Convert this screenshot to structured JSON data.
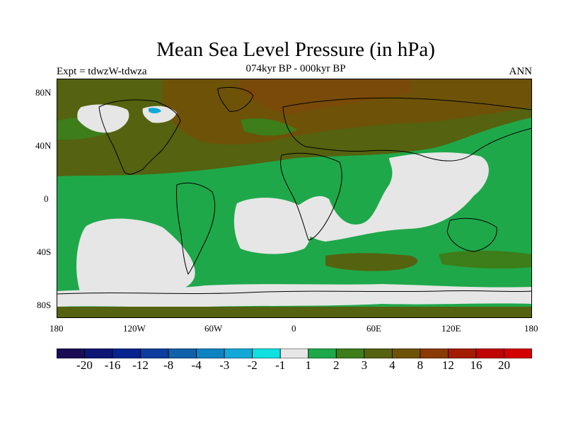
{
  "header": {
    "title": "Mean Sea Level Pressure (in hPa)",
    "experiment": "Expt = tdwzW-tdwza",
    "period": "074kyr BP - 000kyr BP",
    "season": "ANN"
  },
  "map": {
    "projection": "cylindrical equidistant",
    "lat_labels": [
      "80N",
      "40N",
      "0",
      "40S",
      "80S"
    ],
    "lon_labels": [
      "180",
      "120W",
      "60W",
      "0",
      "60E",
      "120E",
      "180"
    ],
    "ocean_color": "#1fa84a",
    "coastline_color": "#000000"
  },
  "colorbar": {
    "labels": [
      "-20",
      "-16",
      "-12",
      "-8",
      "-4",
      "-3",
      "-2",
      "-1",
      "1",
      "2",
      "3",
      "4",
      "8",
      "12",
      "16",
      "20"
    ],
    "colors": [
      "#1a0c55",
      "#0d1675",
      "#05248e",
      "#0c3d9f",
      "#1160ab",
      "#0e83c2",
      "#12a8d8",
      "#10e0e0",
      "#e6e6e6",
      "#1fa84a",
      "#3d7d1a",
      "#55620f",
      "#6e5208",
      "#8a3a05",
      "#a31c02",
      "#c00404",
      "#d20000"
    ]
  }
}
